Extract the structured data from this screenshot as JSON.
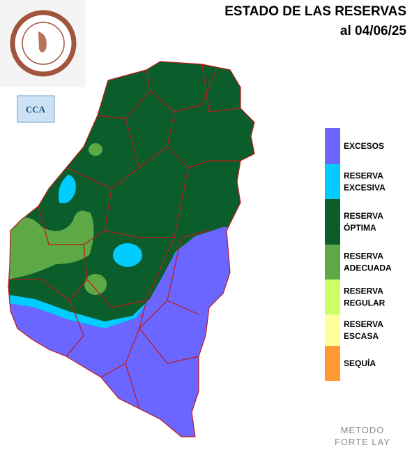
{
  "header": {
    "title": "ESTADO DE LAS RESERVAS",
    "date": "al 04/06/25"
  },
  "badge": "CCA",
  "legend": [
    {
      "lines": [
        "EXCESOS"
      ],
      "color": "#6a66ff"
    },
    {
      "lines": [
        "RESERVA",
        "EXCESIVA"
      ],
      "color": "#00ccff"
    },
    {
      "lines": [
        "RESERVA",
        "ÓPTIMA"
      ],
      "color": "#0b5e2c"
    },
    {
      "lines": [
        "RESERVA",
        "ADECUADA"
      ],
      "color": "#5fa846"
    },
    {
      "lines": [
        "RESERVA",
        "REGULAR"
      ],
      "color": "#ccff66"
    },
    {
      "lines": [
        "RESERVA",
        "ESCASA"
      ],
      "color": "#ffff99"
    },
    {
      "lines": [
        "SEQUÍA"
      ],
      "color": "#ff9933"
    }
  ],
  "footer": [
    "METODO",
    "FORTE LAY"
  ]
}
